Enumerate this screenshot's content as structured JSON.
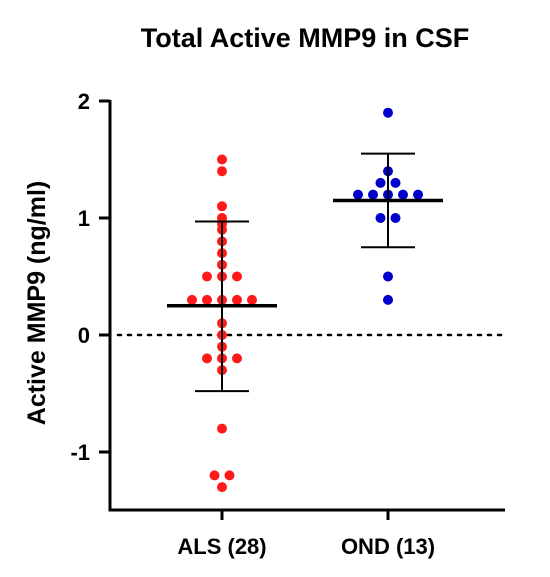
{
  "chart_data": {
    "type": "scatter",
    "title": "Total Active MMP9 in CSF",
    "xlabel": "",
    "ylabel": "Active MMP9 (ng/ml)",
    "ylim": [
      -1.5,
      2
    ],
    "yticks": [
      -1,
      0,
      1,
      2
    ],
    "reference_line": 0,
    "categories": [
      "ALS (28)",
      "OND (13)"
    ],
    "series": [
      {
        "category": "ALS (28)",
        "color": "#ff1a1a",
        "mean": 0.25,
        "sd_upper": 0.97,
        "sd_lower": -0.48,
        "values": [
          1.5,
          1.4,
          1.1,
          1.0,
          0.95,
          0.9,
          0.8,
          0.7,
          0.6,
          0.5,
          0.5,
          0.5,
          0.3,
          0.3,
          0.3,
          0.3,
          0.3,
          0.1,
          0.0,
          -0.1,
          -0.2,
          -0.2,
          -0.2,
          -0.3,
          -0.8,
          -1.2,
          -1.2,
          -1.3
        ]
      },
      {
        "category": "OND (13)",
        "color": "#0000cc",
        "mean": 1.15,
        "sd_upper": 1.55,
        "sd_lower": 0.75,
        "values": [
          1.9,
          1.4,
          1.3,
          1.3,
          1.2,
          1.2,
          1.2,
          1.2,
          1.2,
          1.0,
          1.0,
          0.5,
          0.3
        ]
      }
    ]
  }
}
